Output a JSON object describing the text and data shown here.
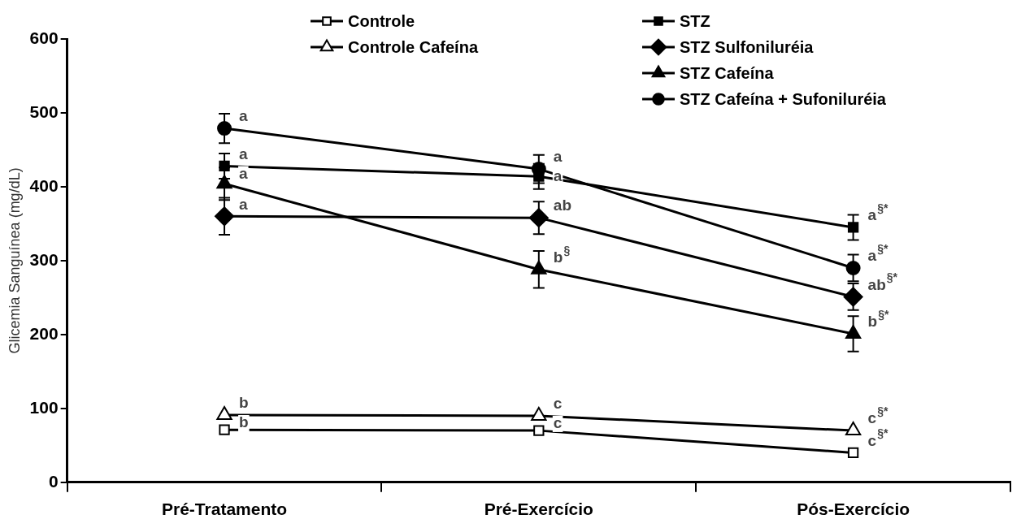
{
  "chart_data": {
    "type": "line",
    "ylabel": "Glicemia Sanguínea (mg/dL)",
    "categories": [
      "Pré-Tratamento",
      "Pré-Exercício",
      "Pós-Exercício"
    ],
    "ylim": [
      0,
      600
    ],
    "yticks": [
      0,
      100,
      200,
      300,
      400,
      500,
      600
    ],
    "grid": false,
    "legend": "top",
    "line_style": "solid",
    "series": [
      {
        "name": "Controle",
        "color": "#000000",
        "marker": "square",
        "colors": [
          "#ffffff",
          "#ffffff",
          "#ffffff"
        ],
        "values": [
          71,
          70,
          40
        ]
      },
      {
        "name": "Controle Cafeína",
        "color": "#000000",
        "marker": "triangle",
        "colors": [
          "#ffffff",
          "#ffffff",
          "#ffffff"
        ],
        "values": [
          91,
          90,
          70
        ]
      },
      {
        "name": "STZ",
        "color": "#000000",
        "marker": "square",
        "values": [
          428,
          414,
          345
        ],
        "errors": [
          17,
          17,
          17
        ]
      },
      {
        "name": "STZ Sulfoniluréia",
        "color": "#000000",
        "marker": "diamond",
        "values": [
          360,
          358,
          251
        ],
        "errors": [
          25,
          22,
          18
        ]
      },
      {
        "name": "STZ Cafeína",
        "color": "#000000",
        "marker": "triangle",
        "values": [
          404,
          288,
          201
        ],
        "errors": [
          22,
          25,
          24
        ]
      },
      {
        "name": "STZ Cafeína + Sufoniluréia",
        "color": "#000000",
        "marker": "circle",
        "values": [
          479,
          424,
          290
        ],
        "errors": [
          20,
          19,
          18
        ]
      }
    ],
    "annotations": [
      {
        "text": "a",
        "x": "Pré-Tratamento",
        "y": 479
      },
      {
        "text": "a",
        "x": "Pré-Tratamento",
        "y": 428
      },
      {
        "text": "a",
        "x": "Pré-Tratamento",
        "y": 404
      },
      {
        "text": "a",
        "x": "Pré-Tratamento",
        "y": 360
      },
      {
        "text": "b",
        "x": "Pré-Tratamento",
        "y": 91
      },
      {
        "text": "b",
        "x": "Pré-Tratamento",
        "y": 71
      },
      {
        "text": "a",
        "x": "Pré-Exercício",
        "y": 424
      },
      {
        "text": "a",
        "x": "Pré-Exercício",
        "y": 414
      },
      {
        "text": "ab",
        "x": "Pré-Exercício",
        "y": 358
      },
      {
        "text": "b$^{§}$",
        "x": "Pré-Exercício",
        "y": 288
      },
      {
        "text": "c",
        "x": "Pré-Exercício",
        "y": 90
      },
      {
        "text": "c",
        "x": "Pré-Exercício",
        "y": 70
      },
      {
        "text": "a$^{§*}$",
        "x": "Pós-Exercício",
        "y": 345
      },
      {
        "text": "a$^{§*}$",
        "x": "Pós-Exercício",
        "y": 290
      },
      {
        "text": "ab$^{§*}$",
        "x": "Pós-Exercício",
        "y": 251
      },
      {
        "text": "b$^{§*}$",
        "x": "Pós-Exercício",
        "y": 201
      },
      {
        "text": "c$^{§*}$",
        "x": "Pós-Exercício",
        "y": 70
      },
      {
        "text": "c$^{§*}$",
        "x": "Pós-Exercício",
        "y": 40
      }
    ]
  }
}
